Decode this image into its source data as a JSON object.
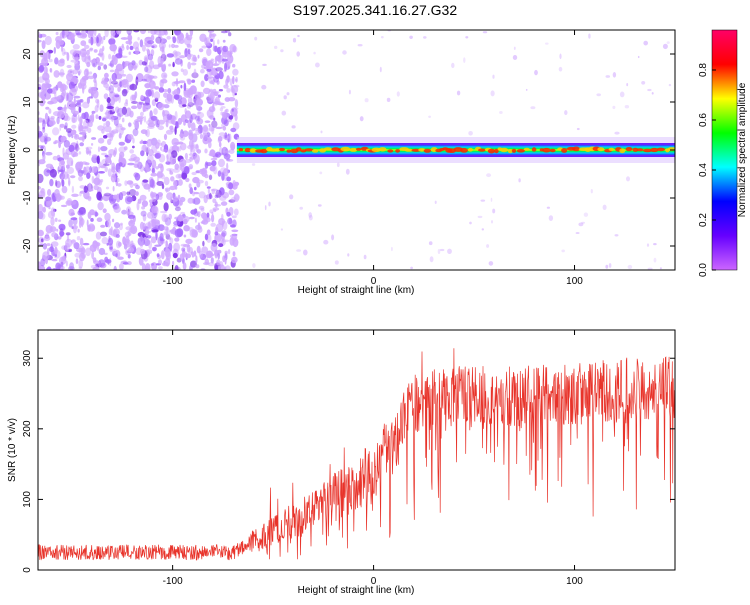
{
  "title": "S197.2025.341.16.27.G32",
  "colors": {
    "snr_line": "#e8332a",
    "axis": "#000000",
    "dot_light": "#cfa6ff",
    "dot_mid": "#a66bff",
    "dot_dark": "#7b2fe8"
  },
  "chart_data": [
    {
      "type": "heatmap",
      "title": "S197.2025.341.16.27.G32",
      "xlabel": "Height of straight line (km)",
      "ylabel": "Frequency (Hz)",
      "xlim": [
        -167,
        150
      ],
      "ylim": [
        -25,
        25
      ],
      "x_ticks": [
        -100,
        0,
        100
      ],
      "x_tick_labels": [
        "-100",
        "0",
        "100"
      ],
      "y_ticks": [
        -20,
        -10,
        0,
        10,
        20
      ],
      "y_tick_labels": [
        "-20",
        "-10",
        "0",
        "10",
        "20"
      ],
      "colorbar": {
        "label": "Normalized spectral amplitude",
        "range": [
          0,
          0.96
        ],
        "ticks": [
          0.0,
          0.2,
          0.4,
          0.6,
          0.8
        ],
        "tick_labels": [
          "0.0",
          "0.2",
          "0.4",
          "0.6",
          "0.8"
        ],
        "stops": [
          "#cc66ff",
          "#6600ff",
          "#0000ff",
          "#00ffff",
          "#00ff00",
          "#ffff00",
          "#ff0000",
          "#ff0066"
        ]
      },
      "noise_region_km": [
        -167,
        -68
      ],
      "signal_track": {
        "start_km": -68,
        "end_km": 150,
        "frequency_hz": 0,
        "peak_amplitude": 0.95
      }
    },
    {
      "type": "line",
      "xlabel": "Height of straight line (km)",
      "ylabel": "SNR (10 * v/v)",
      "xlim": [
        -167,
        150
      ],
      "ylim": [
        0,
        340
      ],
      "x_ticks": [
        -100,
        0,
        100
      ],
      "x_tick_labels": [
        "-100",
        "0",
        "100"
      ],
      "y_ticks": [
        0,
        100,
        200,
        300
      ],
      "y_tick_labels": [
        "0",
        "100",
        "200",
        "300"
      ],
      "series": [
        {
          "name": "SNR",
          "x": [
            -167,
            -120,
            -70,
            -60,
            -40,
            -20,
            0,
            10,
            20,
            40,
            60,
            80,
            100,
            120,
            150
          ],
          "values": [
            25,
            25,
            25,
            40,
            70,
            100,
            140,
            180,
            235,
            245,
            245,
            245,
            250,
            255,
            260
          ]
        }
      ]
    }
  ]
}
